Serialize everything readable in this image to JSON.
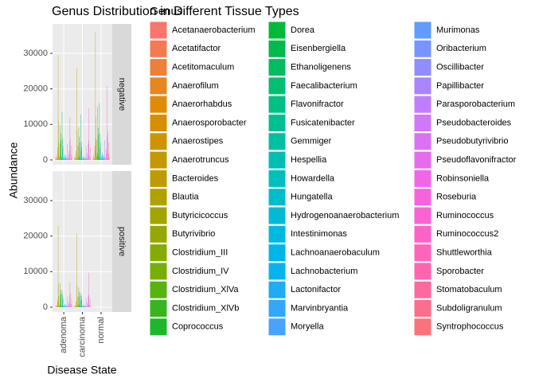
{
  "chart_data": {
    "type": "bar",
    "title": "Genus Distribution in Different Tissue Types",
    "legend_title": "Genus",
    "xlabel": "Disease State",
    "ylabel": "Abundance",
    "categories": [
      "adenoma",
      "carcinoma",
      "normal"
    ],
    "facets": [
      "negative",
      "positive"
    ],
    "ylim": [
      -1350,
      38300
    ],
    "yticks": [
      0,
      10000,
      20000,
      30000
    ],
    "grid": true,
    "series": [
      {
        "name": "Acetanaerobacterium",
        "color": "#F8766D",
        "values": [
          [
            300,
            250,
            200
          ],
          [
            150,
            100,
            null
          ]
        ]
      },
      {
        "name": "Acetatifactor",
        "color": "#F27B53",
        "values": [
          [
            800,
            600,
            900
          ],
          [
            500,
            400,
            null
          ]
        ]
      },
      {
        "name": "Acetitomaculum",
        "color": "#EC803A",
        "values": [
          [
            100,
            80,
            60
          ],
          [
            50,
            40,
            null
          ]
        ]
      },
      {
        "name": "Anaerofilum",
        "color": "#E68620",
        "values": [
          [
            1200,
            900,
            1500
          ],
          [
            700,
            600,
            null
          ]
        ]
      },
      {
        "name": "Anaerorhabdus",
        "color": "#E08B06",
        "values": [
          [
            200,
            150,
            300
          ],
          [
            100,
            80,
            null
          ]
        ]
      },
      {
        "name": "Anaerosporobacter",
        "color": "#D78F00",
        "values": [
          [
            400,
            300,
            500
          ],
          [
            250,
            200,
            null
          ]
        ]
      },
      {
        "name": "Anaerostipes",
        "color": "#CE9400",
        "values": [
          [
            3500,
            2500,
            4000
          ],
          [
            2000,
            1800,
            null
          ]
        ]
      },
      {
        "name": "Anaerotruncus",
        "color": "#C59800",
        "values": [
          [
            2000,
            1800,
            2500
          ],
          [
            1500,
            1200,
            null
          ]
        ]
      },
      {
        "name": "Bacteroides",
        "color": "#BC9C00",
        "values": [
          [
            29500,
            25800,
            36000
          ],
          [
            23000,
            20700,
            null
          ]
        ]
      },
      {
        "name": "Blautia",
        "color": "#B0A100",
        "values": [
          [
            11000,
            8500,
            12000
          ],
          [
            6500,
            6000,
            null
          ]
        ]
      },
      {
        "name": "Butyricicoccus",
        "color": "#A2A400",
        "values": [
          [
            5000,
            4200,
            6000
          ],
          [
            3200,
            3000,
            null
          ]
        ]
      },
      {
        "name": "Butyrivibrio",
        "color": "#94A800",
        "values": [
          [
            600,
            500,
            800
          ],
          [
            400,
            300,
            null
          ]
        ]
      },
      {
        "name": "Clostridium_III",
        "color": "#86AB00",
        "values": [
          [
            900,
            700,
            1200
          ],
          [
            500,
            450,
            null
          ]
        ]
      },
      {
        "name": "Clostridium_IV",
        "color": "#75AF03",
        "values": [
          [
            4500,
            3800,
            5500
          ],
          [
            3000,
            2700,
            null
          ]
        ]
      },
      {
        "name": "Clostridium_XlVa",
        "color": "#58B210",
        "values": [
          [
            10000,
            9200,
            15000
          ],
          [
            6800,
            5500,
            null
          ]
        ]
      },
      {
        "name": "Clostridium_XlVb",
        "color": "#3AB41E",
        "values": [
          [
            1500,
            1200,
            2000
          ],
          [
            900,
            800,
            null
          ]
        ]
      },
      {
        "name": "Coprococcus",
        "color": "#1DB72B",
        "values": [
          [
            7500,
            6500,
            9000
          ],
          [
            5000,
            4300,
            null
          ]
        ]
      },
      {
        "name": "Dorea",
        "color": "#00BA38",
        "values": [
          [
            5500,
            4800,
            7000
          ],
          [
            3800,
            3200,
            null
          ]
        ]
      },
      {
        "name": "Eisenbergiella",
        "color": "#00BB4C",
        "values": [
          [
            800,
            600,
            1000
          ],
          [
            500,
            400,
            null
          ]
        ]
      },
      {
        "name": "Ethanoligenens",
        "color": "#00BD5F",
        "values": [
          [
            300,
            200,
            400
          ],
          [
            150,
            150,
            null
          ]
        ]
      },
      {
        "name": "Faecalibacterium",
        "color": "#00BE73",
        "values": [
          [
            13500,
            12800,
            16000
          ],
          [
            4600,
            4000,
            null
          ]
        ]
      },
      {
        "name": "Flavonifractor",
        "color": "#00C086",
        "values": [
          [
            3000,
            2500,
            3500
          ],
          [
            2000,
            1800,
            null
          ]
        ]
      },
      {
        "name": "Fusicatenibacter",
        "color": "#00C091",
        "values": [
          [
            6000,
            5200,
            7500
          ],
          [
            3500,
            3300,
            null
          ]
        ]
      },
      {
        "name": "Gemmiger",
        "color": "#00C0A2",
        "values": [
          [
            4000,
            3500,
            5000
          ],
          [
            2500,
            2200,
            null
          ]
        ]
      },
      {
        "name": "Hespellia",
        "color": "#00BFB0",
        "values": [
          [
            500,
            400,
            600
          ],
          [
            300,
            250,
            null
          ]
        ]
      },
      {
        "name": "Howardella",
        "color": "#00BFBD",
        "values": [
          [
            200,
            150,
            250
          ],
          [
            100,
            100,
            null
          ]
        ]
      },
      {
        "name": "Hungatella",
        "color": "#00BEC9",
        "values": [
          [
            1000,
            800,
            1200
          ],
          [
            600,
            500,
            null
          ]
        ]
      },
      {
        "name": "Hydrogenoanaerobacterium",
        "color": "#00BBD4",
        "values": [
          [
            300,
            250,
            400
          ],
          [
            200,
            150,
            null
          ]
        ]
      },
      {
        "name": "Intestinimonas",
        "color": "#00B9DE",
        "values": [
          [
            1500,
            1200,
            1800
          ],
          [
            900,
            800,
            null
          ]
        ]
      },
      {
        "name": "Lachnoanaerobaculum",
        "color": "#00B6E8",
        "values": [
          [
            200,
            150,
            300
          ],
          [
            100,
            100,
            null
          ]
        ]
      },
      {
        "name": "Lachnobacterium",
        "color": "#06B3F1",
        "values": [
          [
            700,
            500,
            900
          ],
          [
            400,
            350,
            null
          ]
        ]
      },
      {
        "name": "Lactonifactor",
        "color": "#1DADF4",
        "values": [
          [
            400,
            300,
            500
          ],
          [
            250,
            200,
            null
          ]
        ]
      },
      {
        "name": "Marvinbryantia",
        "color": "#33A7F8",
        "values": [
          [
            1200,
            1000,
            1500
          ],
          [
            700,
            600,
            null
          ]
        ]
      },
      {
        "name": "Moryella",
        "color": "#4AA2FC",
        "values": [
          [
            300,
            200,
            400
          ],
          [
            150,
            150,
            null
          ]
        ]
      },
      {
        "name": "Murimonas",
        "color": "#619CFF",
        "values": [
          [
            600,
            500,
            700
          ],
          [
            350,
            300,
            null
          ]
        ]
      },
      {
        "name": "Oribacterium",
        "color": "#7994FF",
        "values": [
          [
            400,
            300,
            500
          ],
          [
            200,
            200,
            null
          ]
        ]
      },
      {
        "name": "Oscillibacter",
        "color": "#918DFF",
        "values": [
          [
            4500,
            4000,
            5500
          ],
          [
            3000,
            2600,
            null
          ]
        ]
      },
      {
        "name": "Papillibacter",
        "color": "#A985FF",
        "values": [
          [
            800,
            700,
            1000
          ],
          [
            500,
            400,
            null
          ]
        ]
      },
      {
        "name": "Parasporobacterium",
        "color": "#C17DFF",
        "values": [
          [
            300,
            250,
            400
          ],
          [
            200,
            150,
            null
          ]
        ]
      },
      {
        "name": "Pseudobacteroides",
        "color": "#CF78FA",
        "values": [
          [
            500,
            400,
            600
          ],
          [
            300,
            250,
            null
          ]
        ]
      },
      {
        "name": "Pseudobutyrivibrio",
        "color": "#DA72F3",
        "values": [
          [
            2500,
            2000,
            3000
          ],
          [
            1500,
            1300,
            null
          ]
        ]
      },
      {
        "name": "Pseudoflavonifractor",
        "color": "#E56CEC",
        "values": [
          [
            1500,
            1300,
            1800
          ],
          [
            1000,
            900,
            null
          ]
        ]
      },
      {
        "name": "Robinsoniella",
        "color": "#F066E6",
        "values": [
          [
            400,
            300,
            500
          ],
          [
            200,
            200,
            null
          ]
        ]
      },
      {
        "name": "Roseburia",
        "color": "#F664DD",
        "values": [
          [
            5000,
            4500,
            6500
          ],
          [
            3200,
            3000,
            null
          ]
        ]
      },
      {
        "name": "Ruminococcus",
        "color": "#F964D2",
        "values": [
          [
            12000,
            14500,
            20800
          ],
          [
            7000,
            9700,
            null
          ]
        ]
      },
      {
        "name": "Ruminococcus2",
        "color": "#FB64C6",
        "values": [
          [
            6000,
            5500,
            8000
          ],
          [
            4000,
            3500,
            null
          ]
        ]
      },
      {
        "name": "Shuttleworthia",
        "color": "#FD64BA",
        "values": [
          [
            200,
            150,
            300
          ],
          [
            100,
            100,
            null
          ]
        ]
      },
      {
        "name": "Sporobacter",
        "color": "#FF65AC",
        "values": [
          [
            1500,
            1200,
            1800
          ],
          [
            900,
            800,
            null
          ]
        ]
      },
      {
        "name": "Stomatobaculum",
        "color": "#FD699D",
        "values": [
          [
            300,
            200,
            400
          ],
          [
            150,
            150,
            null
          ]
        ]
      },
      {
        "name": "Subdoligranulum",
        "color": "#FB6E8D",
        "values": [
          [
            4000,
            3500,
            5000
          ],
          [
            2500,
            2200,
            null
          ]
        ]
      },
      {
        "name": "Syntrophococcus",
        "color": "#FA727D",
        "values": [
          [
            500,
            400,
            600
          ],
          [
            300,
            250,
            null
          ]
        ]
      }
    ]
  }
}
